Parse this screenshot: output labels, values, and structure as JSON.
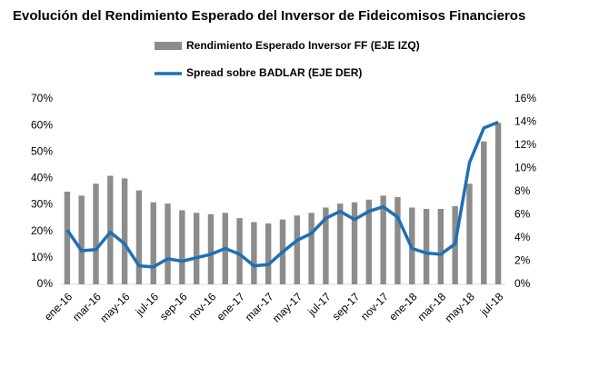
{
  "chart_data": {
    "type": "bar-line",
    "title": "Evolución del Rendimiento Esperado del Inversor de Fideicomisos Financieros",
    "categories": [
      "ene-16",
      null,
      "mar-16",
      null,
      "may-16",
      null,
      "jul-16",
      null,
      "sep-16",
      null,
      "nov-16",
      null,
      "ene-17",
      null,
      "mar-17",
      null,
      "may-17",
      null,
      "jul-17",
      null,
      "sep-17",
      null,
      "nov-17",
      null,
      "ene-18",
      null,
      "mar-18",
      null,
      "may-18",
      null,
      "jul-18"
    ],
    "series": [
      {
        "name": "Rendimiento Esperado Inversor FF (EJE IZQ)",
        "color": "#8c8c8c",
        "type": "bar",
        "values": [
          35,
          33.5,
          38,
          41,
          40,
          35.5,
          31,
          30.5,
          28,
          27,
          26.5,
          27,
          25,
          23.5,
          23,
          24.5,
          26,
          27,
          29,
          30.5,
          31,
          32,
          33.5,
          33,
          29,
          28.5,
          28.5,
          29.5,
          38,
          54,
          61
        ]
      },
      {
        "name": "Spread sobre BADLAR (EJE DER)",
        "color": "#1f6fb5",
        "type": "line",
        "axis": "y2",
        "values": [
          4.7,
          2.9,
          3.0,
          4.5,
          3.5,
          1.6,
          1.5,
          2.2,
          2.0,
          2.3,
          2.6,
          3.1,
          2.6,
          1.6,
          1.7,
          2.8,
          3.8,
          4.4,
          5.7,
          6.3,
          5.6,
          6.3,
          6.7,
          5.8,
          3.1,
          2.7,
          2.6,
          3.5,
          10.5,
          13.5,
          14.0
        ]
      }
    ],
    "ylim": [
      0,
      70
    ],
    "yticks": [
      {
        "value": 0,
        "label": "0%"
      },
      {
        "value": 10,
        "label": "10%"
      },
      {
        "value": 20,
        "label": "20%"
      },
      {
        "value": 30,
        "label": "30%"
      },
      {
        "value": 40,
        "label": "40%"
      },
      {
        "value": 50,
        "label": "50%"
      },
      {
        "value": 60,
        "label": "60%"
      },
      {
        "value": 70,
        "label": "70%"
      }
    ],
    "y2lim": [
      0,
      16
    ],
    "y2ticks": [
      {
        "value": 0,
        "label": "0%"
      },
      {
        "value": 2,
        "label": "2%"
      },
      {
        "value": 4,
        "label": "4%"
      },
      {
        "value": 6,
        "label": "6%"
      },
      {
        "value": 8,
        "label": "8%"
      },
      {
        "value": 10,
        "label": "10%"
      },
      {
        "value": 12,
        "label": "12%"
      },
      {
        "value": 14,
        "label": "14%"
      },
      {
        "value": 16,
        "label": "16%"
      }
    ],
    "grid": false
  }
}
